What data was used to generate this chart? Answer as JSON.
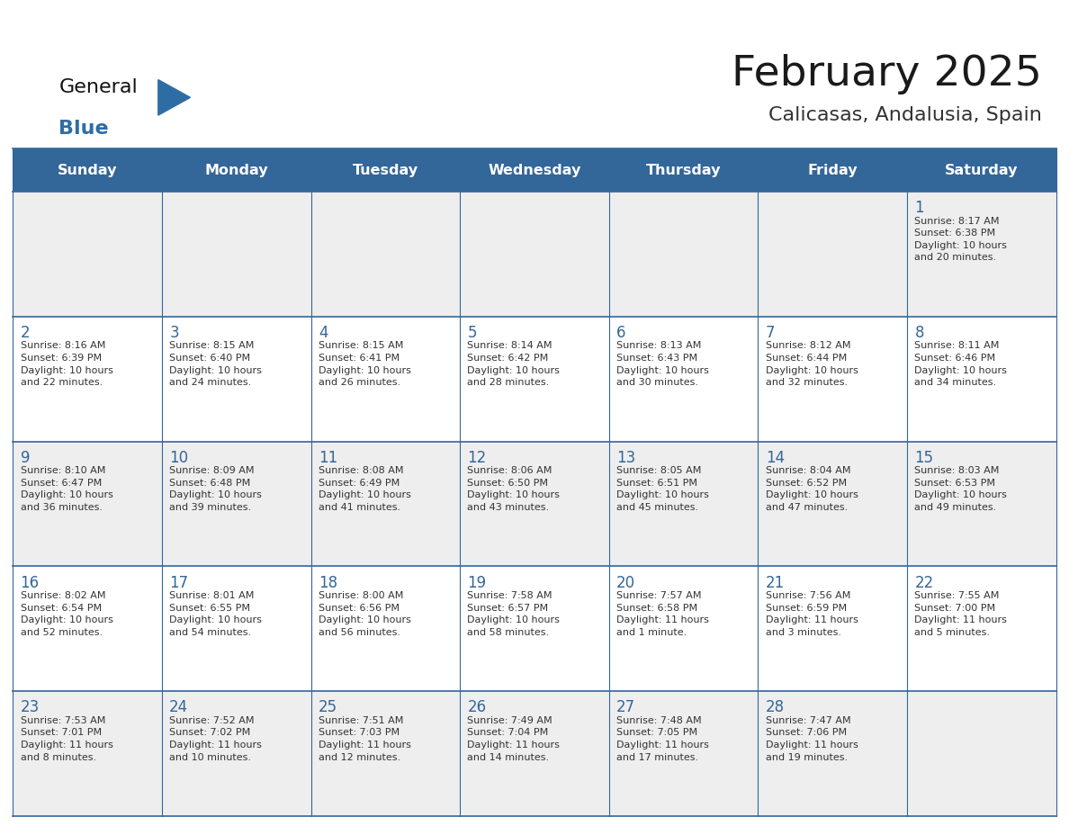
{
  "title": "February 2025",
  "subtitle": "Calicasas, Andalusia, Spain",
  "header_bg": "#336699",
  "header_text": "#FFFFFF",
  "border_color": "#336699",
  "day_names": [
    "Sunday",
    "Monday",
    "Tuesday",
    "Wednesday",
    "Thursday",
    "Friday",
    "Saturday"
  ],
  "title_color": "#1a1a1a",
  "subtitle_color": "#333333",
  "day_number_color": "#336699",
  "info_color": "#333333",
  "row_bg_odd": "#EEEEEE",
  "row_bg_even": "#FFFFFF",
  "calendar": [
    [
      null,
      null,
      null,
      null,
      null,
      null,
      {
        "day": "1",
        "sunrise": "8:17 AM",
        "sunset": "6:38 PM",
        "daylight": "10 hours\nand 20 minutes."
      }
    ],
    [
      {
        "day": "2",
        "sunrise": "8:16 AM",
        "sunset": "6:39 PM",
        "daylight": "10 hours\nand 22 minutes."
      },
      {
        "day": "3",
        "sunrise": "8:15 AM",
        "sunset": "6:40 PM",
        "daylight": "10 hours\nand 24 minutes."
      },
      {
        "day": "4",
        "sunrise": "8:15 AM",
        "sunset": "6:41 PM",
        "daylight": "10 hours\nand 26 minutes."
      },
      {
        "day": "5",
        "sunrise": "8:14 AM",
        "sunset": "6:42 PM",
        "daylight": "10 hours\nand 28 minutes."
      },
      {
        "day": "6",
        "sunrise": "8:13 AM",
        "sunset": "6:43 PM",
        "daylight": "10 hours\nand 30 minutes."
      },
      {
        "day": "7",
        "sunrise": "8:12 AM",
        "sunset": "6:44 PM",
        "daylight": "10 hours\nand 32 minutes."
      },
      {
        "day": "8",
        "sunrise": "8:11 AM",
        "sunset": "6:46 PM",
        "daylight": "10 hours\nand 34 minutes."
      }
    ],
    [
      {
        "day": "9",
        "sunrise": "8:10 AM",
        "sunset": "6:47 PM",
        "daylight": "10 hours\nand 36 minutes."
      },
      {
        "day": "10",
        "sunrise": "8:09 AM",
        "sunset": "6:48 PM",
        "daylight": "10 hours\nand 39 minutes."
      },
      {
        "day": "11",
        "sunrise": "8:08 AM",
        "sunset": "6:49 PM",
        "daylight": "10 hours\nand 41 minutes."
      },
      {
        "day": "12",
        "sunrise": "8:06 AM",
        "sunset": "6:50 PM",
        "daylight": "10 hours\nand 43 minutes."
      },
      {
        "day": "13",
        "sunrise": "8:05 AM",
        "sunset": "6:51 PM",
        "daylight": "10 hours\nand 45 minutes."
      },
      {
        "day": "14",
        "sunrise": "8:04 AM",
        "sunset": "6:52 PM",
        "daylight": "10 hours\nand 47 minutes."
      },
      {
        "day": "15",
        "sunrise": "8:03 AM",
        "sunset": "6:53 PM",
        "daylight": "10 hours\nand 49 minutes."
      }
    ],
    [
      {
        "day": "16",
        "sunrise": "8:02 AM",
        "sunset": "6:54 PM",
        "daylight": "10 hours\nand 52 minutes."
      },
      {
        "day": "17",
        "sunrise": "8:01 AM",
        "sunset": "6:55 PM",
        "daylight": "10 hours\nand 54 minutes."
      },
      {
        "day": "18",
        "sunrise": "8:00 AM",
        "sunset": "6:56 PM",
        "daylight": "10 hours\nand 56 minutes."
      },
      {
        "day": "19",
        "sunrise": "7:58 AM",
        "sunset": "6:57 PM",
        "daylight": "10 hours\nand 58 minutes."
      },
      {
        "day": "20",
        "sunrise": "7:57 AM",
        "sunset": "6:58 PM",
        "daylight": "11 hours\nand 1 minute."
      },
      {
        "day": "21",
        "sunrise": "7:56 AM",
        "sunset": "6:59 PM",
        "daylight": "11 hours\nand 3 minutes."
      },
      {
        "day": "22",
        "sunrise": "7:55 AM",
        "sunset": "7:00 PM",
        "daylight": "11 hours\nand 5 minutes."
      }
    ],
    [
      {
        "day": "23",
        "sunrise": "7:53 AM",
        "sunset": "7:01 PM",
        "daylight": "11 hours\nand 8 minutes."
      },
      {
        "day": "24",
        "sunrise": "7:52 AM",
        "sunset": "7:02 PM",
        "daylight": "11 hours\nand 10 minutes."
      },
      {
        "day": "25",
        "sunrise": "7:51 AM",
        "sunset": "7:03 PM",
        "daylight": "11 hours\nand 12 minutes."
      },
      {
        "day": "26",
        "sunrise": "7:49 AM",
        "sunset": "7:04 PM",
        "daylight": "11 hours\nand 14 minutes."
      },
      {
        "day": "27",
        "sunrise": "7:48 AM",
        "sunset": "7:05 PM",
        "daylight": "11 hours\nand 17 minutes."
      },
      {
        "day": "28",
        "sunrise": "7:47 AM",
        "sunset": "7:06 PM",
        "daylight": "11 hours\nand 19 minutes."
      },
      null
    ]
  ]
}
